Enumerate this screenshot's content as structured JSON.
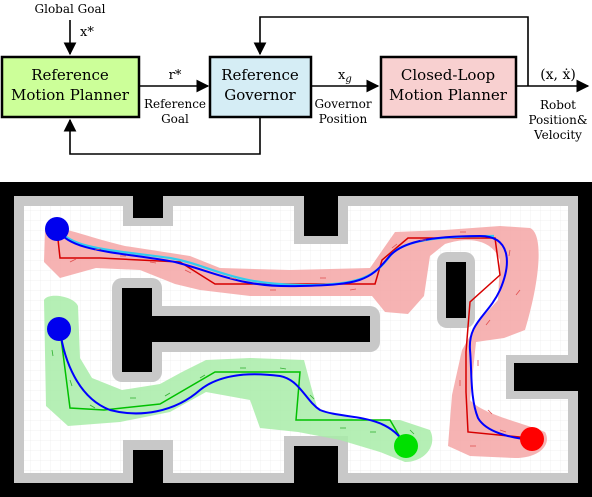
{
  "block_diagram": {
    "global_goal": "Global Goal",
    "x_star": "x*",
    "ref_motion_planner": [
      "Reference",
      "Motion Planner"
    ],
    "r_star": "r*",
    "reference_goal": [
      "Reference",
      "Goal"
    ],
    "ref_governor": [
      "Reference",
      "Governor"
    ],
    "x_g_base": "x",
    "x_g_sub": "g",
    "governor_position": [
      "Governor",
      "Position"
    ],
    "closed_loop_planner": [
      "Closed-Loop",
      "Motion Planner"
    ],
    "output_state": "(x, ẋ)",
    "robot_state": [
      "Robot",
      "Position&",
      "Velocity"
    ],
    "colors": {
      "ref_motion_planner_fill": "#ccff99",
      "ref_governor_fill": "#d5edf5",
      "closed_loop_fill": "#f8d0d0"
    }
  },
  "maze_figure": {
    "colors": {
      "wall": "#000000",
      "inflation": "#c8c8c8",
      "red_region": "#f4a6a6",
      "green_region": "#a8eca8",
      "path": "#0000ff",
      "reference_red": "#d60000",
      "reference_green": "#00c000",
      "start_marker": "#0000ee",
      "goal_red": "#ff0000",
      "goal_green": "#00e000"
    }
  }
}
